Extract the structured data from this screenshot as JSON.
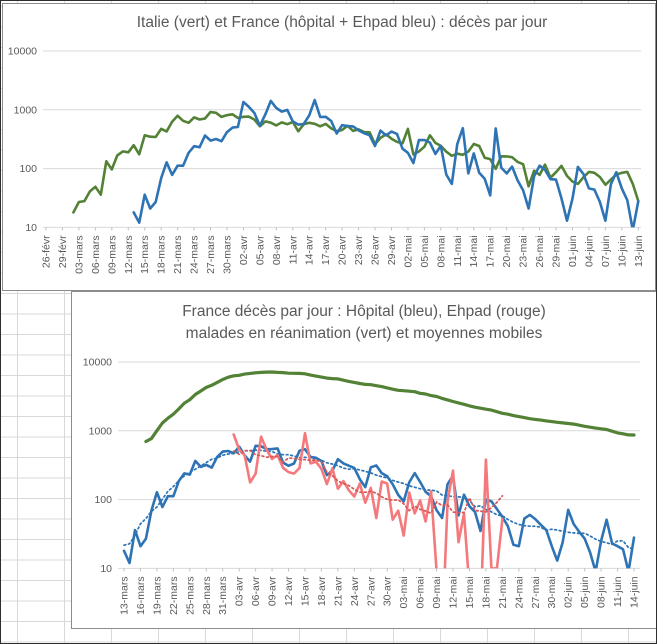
{
  "colors": {
    "green": "#538135",
    "blue": "#2E74B5",
    "red": "#F4797C",
    "blue_dotted": "#2E74B5",
    "red_dotted": "#D65757",
    "gridline": "#D9D9D9",
    "tick": "#BFBFBF",
    "text": "#595959"
  },
  "chart_data": [
    {
      "type": "line",
      "title": "Italie (vert) et France (hôpital + Ehpad bleu) : décès par jour",
      "y_scale": "log",
      "ylim": [
        10,
        10000
      ],
      "y_tick_labels": [
        "10000",
        "1000",
        "100",
        "10"
      ],
      "x_tick_step_days": 3,
      "n_days": 109,
      "grid": "horizontal-only",
      "legend": "none (colors named in title)",
      "x_tick_labels": [
        "26-févr",
        "29-févr",
        "03-mars",
        "06-mars",
        "09-mars",
        "12-mars",
        "15-mars",
        "18-mars",
        "21-mars",
        "24-mars",
        "27-mars",
        "30-mars",
        "02-avr",
        "05-avr",
        "08-avr",
        "11-avr",
        "14-avr",
        "17-avr",
        "20-avr",
        "23-avr",
        "26-avr",
        "29-avr",
        "02-mai",
        "05-mai",
        "08-mai",
        "11-mai",
        "14-mai",
        "17-mai",
        "20-mai",
        "23-mai",
        "26-mai",
        "29-mai",
        "01-juin",
        "04-juin",
        "07-juin",
        "10-juin",
        "13-juin"
      ],
      "series": [
        {
          "name": "Italie (décès par jour)",
          "color": "green",
          "start_index": 5,
          "values": [
            18,
            27,
            28,
            41,
            49,
            36,
            133,
            97,
            168,
            196,
            189,
            250,
            175,
            368,
            349,
            345,
            475,
            427,
            627,
            793,
            651,
            601,
            743,
            683,
            712,
            919,
            889,
            756,
            812,
            837,
            727,
            760,
            766,
            681,
            525,
            636,
            604,
            542,
            610,
            570,
            619,
            431,
            566,
            602,
            578,
            525,
            575,
            482,
            433,
            454,
            534,
            437,
            464,
            420,
            415,
            260,
            333,
            382,
            323,
            285,
            269,
            474,
            174,
            195,
            236,
            369,
            274,
            243,
            194,
            165,
            179,
            172,
            195,
            262,
            242,
            153,
            145,
            99,
            162,
            161,
            156,
            130,
            119,
            50,
            92,
            78,
            117,
            70,
            87,
            111,
            75,
            60,
            55,
            71,
            88,
            85,
            72,
            53,
            65,
            79,
            85,
            88,
            55,
            28
          ]
        },
        {
          "name": "France hôpital + Ehpad (décès par jour)",
          "color": "blue",
          "start_index": 16,
          "values": [
            18,
            12,
            36,
            21,
            27,
            69,
            128,
            78,
            112,
            112,
            186,
            240,
            231,
            365,
            299,
            319,
            292,
            418,
            499,
            509,
            1355,
            1120,
            882,
            535,
            843,
            1417,
            1072,
            931,
            997,
            635,
            561,
            574,
            802,
            1465,
            753,
            761,
            644,
            395,
            547,
            531,
            522,
            448,
            400,
            369,
            242,
            443,
            367,
            426,
            389,
            218,
            186,
            124,
            305,
            306,
            278,
            178,
            243,
            79,
            55,
            263,
            486,
            83,
            181,
            85,
            67,
            35,
            483,
            104,
            83,
            108,
            63,
            43,
            21,
            74,
            112,
            95,
            66,
            65,
            31,
            13,
            31,
            107,
            81,
            46,
            44,
            27,
            13,
            54,
            87,
            46,
            29,
            9,
            28
          ]
        }
      ]
    },
    {
      "type": "line",
      "title_line1": "France décès par jour : Hôpital (bleu), Ehpad (rouge)",
      "title_line2": "malades en réanimation (vert) et moyennes mobiles",
      "y_scale": "log",
      "ylim": [
        10,
        10000
      ],
      "y_tick_labels": [
        "10000",
        "1000",
        "100",
        "10"
      ],
      "x_tick_step_days": 3,
      "n_days": 94,
      "grid": "horizontal-only",
      "legend": "none (colors named in title)",
      "x_tick_labels": [
        "13-mars",
        "16-mars",
        "19-mars",
        "22-mars",
        "25-mars",
        "28-mars",
        "31-mars",
        "03-avr",
        "06-avr",
        "09-avr",
        "12-avr",
        "15-avr",
        "18-avr",
        "21-avr",
        "24-avr",
        "27-avr",
        "30-avr",
        "03-mai",
        "06-mai",
        "09-mai",
        "12-mai",
        "15-mai",
        "18-mai",
        "21-mai",
        "24-mai",
        "27-mai",
        "30-mai",
        "02-juin",
        "05-juin",
        "08-juin",
        "11-juin",
        "14-juin"
      ],
      "series": [
        {
          "name": "malades en réanimation",
          "color": "green",
          "start_index": 4,
          "values": [
            699,
            771,
            1002,
            1297,
            1525,
            1746,
            2082,
            2516,
            2827,
            3375,
            3787,
            4273,
            4592,
            5056,
            5565,
            6017,
            6305,
            6399,
            6662,
            6838,
            6978,
            7072,
            7131,
            7148,
            7066,
            7004,
            6883,
            6845,
            6821,
            6730,
            6457,
            6248,
            6027,
            5833,
            5744,
            5683,
            5433,
            5218,
            5053,
            4870,
            4725,
            4682,
            4529,
            4387,
            4207,
            4019,
            3878,
            3827,
            3764,
            3696,
            3505,
            3430,
            3243,
            3147,
            2961,
            2812,
            2668,
            2542,
            2428,
            2299,
            2203,
            2132,
            2062,
            1998,
            1894,
            1794,
            1745,
            1665,
            1610,
            1555,
            1501,
            1465,
            1429,
            1395,
            1361,
            1331,
            1302,
            1277,
            1253,
            1208,
            1163,
            1129,
            1094,
            1068,
            1043,
            988,
            933,
            903,
            873,
            868
          ]
        },
        {
          "name": "Hôpital (décès par jour)",
          "color": "blue",
          "moving_average": true,
          "moving_average_color": "blue_dotted",
          "start_index": 0,
          "values": [
            18,
            12,
            36,
            21,
            27,
            69,
            128,
            78,
            112,
            112,
            186,
            240,
            231,
            365,
            299,
            319,
            292,
            418,
            499,
            509,
            471,
            588,
            441,
            357,
            605,
            597,
            541,
            542,
            554,
            345,
            310,
            335,
            514,
            541,
            417,
            405,
            364,
            227,
            263,
            387,
            336,
            311,
            289,
            198,
            152,
            295,
            313,
            243,
            218,
            167,
            117,
            94,
            178,
            243,
            181,
            130,
            112,
            70,
            54,
            168,
            222,
            59,
            118,
            80,
            66,
            35,
            100,
            94,
            73,
            56,
            41,
            22,
            21,
            53,
            60,
            52,
            43,
            36,
            21,
            13,
            24,
            71,
            44,
            34,
            27,
            17,
            9,
            25,
            51,
            23,
            21,
            19,
            9,
            28
          ]
        },
        {
          "name": "Ehpad (décès par jour)",
          "color": "red",
          "moving_average": true,
          "moving_average_color": "red_dotted",
          "start_index": 20,
          "values": [
            884,
            532,
            441,
            178,
            238,
            820,
            531,
            389,
            443,
            290,
            251,
            239,
            288,
            924,
            336,
            356,
            280,
            168,
            284,
            144,
            186,
            137,
            111,
            171,
            90,
            148,
            54,
            183,
            171,
            51,
            69,
            30,
            127,
            63,
            97,
            48,
            131,
            9,
            1,
            95,
            264,
            24,
            63,
            5,
            1,
            2,
            383,
            10,
            10,
            52
          ]
        }
      ]
    }
  ]
}
